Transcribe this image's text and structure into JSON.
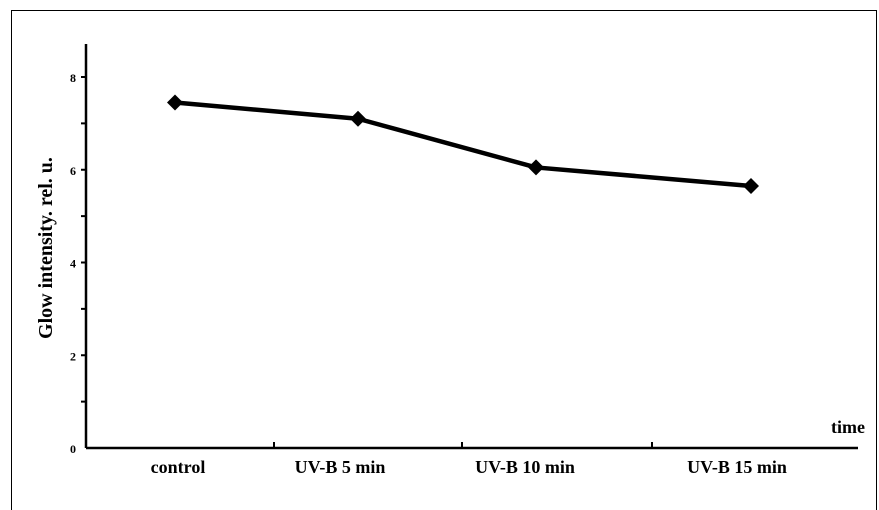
{
  "chart_data": {
    "type": "line",
    "categories": [
      "control",
      "UV-B 5 min",
      "UV-B 10 min",
      "UV-B 15 min"
    ],
    "series": [
      {
        "values": [
          7.45,
          7.1,
          6.05,
          5.65
        ]
      }
    ],
    "ylabel": "Glow intensity. rel. u.",
    "xlabel": "time",
    "ylim": [
      0,
      8.6
    ],
    "yticks": [
      "0",
      "2",
      "4",
      "6",
      "8"
    ],
    "grid": false,
    "colors": {
      "line": "#000000",
      "marker": "#000000"
    }
  }
}
